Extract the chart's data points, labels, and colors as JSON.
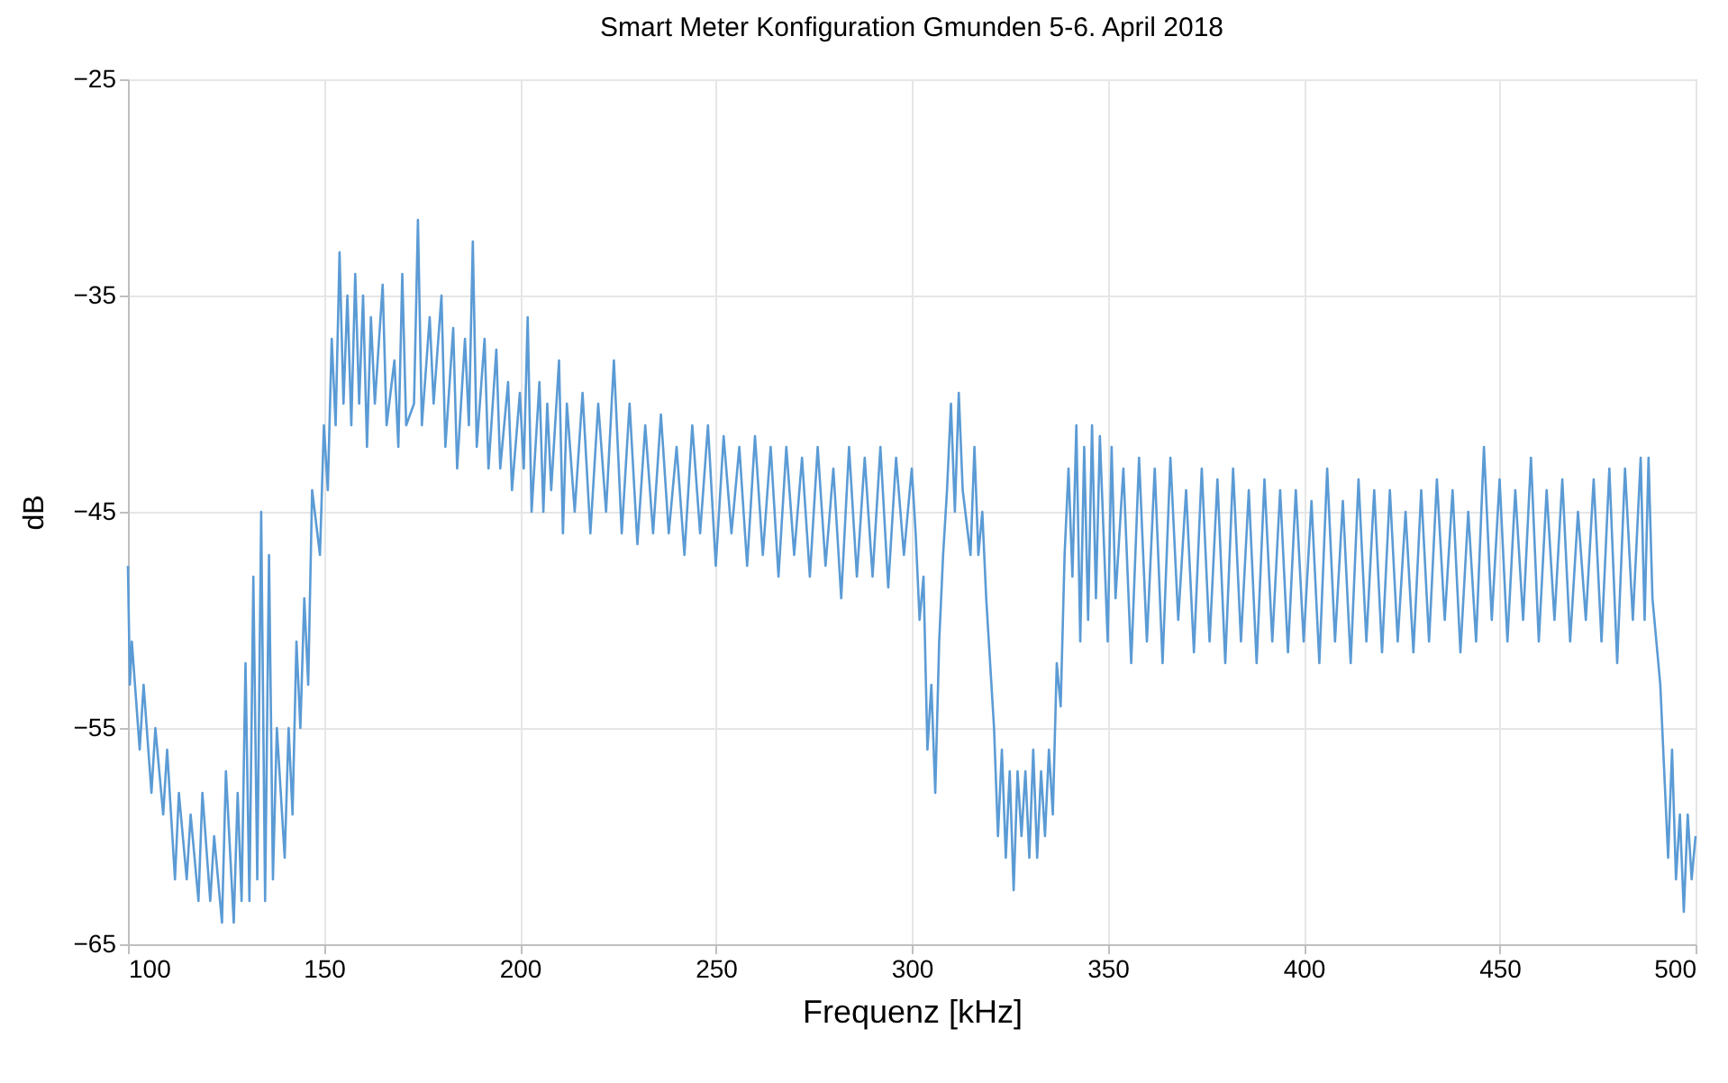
{
  "chart_data": {
    "type": "line",
    "title": "Smart Meter Konfiguration Gmunden 5-6. April 2018",
    "xlabel": "Frequenz [kHz]",
    "ylabel": "dB",
    "xlim": [
      100,
      500
    ],
    "xticks": [
      100,
      150,
      200,
      250,
      300,
      350,
      400,
      450,
      500
    ],
    "ylim": [
      -65,
      -25
    ],
    "yticks": [
      -65,
      -55,
      -45,
      -35,
      -25
    ],
    "grid": true,
    "marker": "none",
    "line_style": "solid",
    "series": [
      {
        "color": "#5b9bd5",
        "x": [
          100,
          100.5,
          101,
          103,
          104,
          106,
          107,
          109,
          110,
          112,
          113,
          115,
          116,
          118,
          119,
          121,
          122,
          124,
          125,
          127,
          128,
          129,
          130,
          131,
          132,
          133,
          134,
          135,
          136,
          137,
          138,
          140,
          141,
          142,
          143,
          144,
          145,
          146,
          147,
          149,
          150,
          151,
          152,
          153,
          154,
          155,
          156,
          157,
          158,
          159,
          160,
          161,
          162,
          163,
          165,
          166,
          168,
          169,
          170,
          171,
          173,
          174,
          175,
          177,
          178,
          180,
          181,
          183,
          184,
          186,
          187,
          188,
          189,
          191,
          192,
          194,
          195,
          197,
          198,
          200,
          201,
          202,
          203,
          205,
          206,
          207,
          208,
          210,
          211,
          212,
          214,
          216,
          218,
          220,
          222,
          224,
          226,
          228,
          230,
          232,
          234,
          236,
          238,
          240,
          242,
          244,
          246,
          248,
          250,
          252,
          254,
          256,
          258,
          260,
          262,
          264,
          266,
          268,
          270,
          272,
          274,
          276,
          278,
          280,
          282,
          284,
          286,
          288,
          290,
          292,
          294,
          296,
          298,
          300,
          301,
          302,
          303,
          304,
          305,
          306,
          307,
          308,
          309,
          310,
          311,
          312,
          313,
          315,
          316,
          317,
          318,
          319,
          320,
          321,
          322,
          323,
          324,
          325,
          326,
          327,
          328,
          329,
          330,
          331,
          332,
          333,
          334,
          335,
          336,
          337,
          338,
          339,
          340,
          341,
          342,
          343,
          344,
          345,
          346,
          347,
          348,
          350,
          351,
          352,
          354,
          356,
          358,
          360,
          362,
          364,
          366,
          368,
          370,
          372,
          374,
          376,
          378,
          380,
          382,
          384,
          386,
          388,
          390,
          392,
          394,
          396,
          398,
          400,
          402,
          404,
          406,
          408,
          410,
          412,
          414,
          416,
          418,
          420,
          422,
          424,
          426,
          428,
          430,
          432,
          434,
          436,
          438,
          440,
          442,
          444,
          446,
          448,
          450,
          452,
          454,
          456,
          458,
          460,
          462,
          464,
          466,
          468,
          470,
          472,
          474,
          476,
          478,
          480,
          482,
          484,
          486,
          487,
          488,
          489,
          490,
          491,
          492,
          493,
          494,
          495,
          496,
          497,
          498,
          499,
          500
        ],
        "values": [
          -47.5,
          -53,
          -51,
          -56,
          -53,
          -58,
          -55,
          -59,
          -56,
          -62,
          -58,
          -62,
          -59,
          -63,
          -58,
          -63,
          -60,
          -64,
          -57,
          -64,
          -58,
          -63,
          -52,
          -63,
          -48,
          -62,
          -45,
          -63,
          -47,
          -62,
          -55,
          -61,
          -55,
          -59,
          -51,
          -55,
          -49,
          -53,
          -44,
          -47,
          -41,
          -44,
          -37,
          -41,
          -33,
          -40,
          -35,
          -41,
          -34,
          -40,
          -35,
          -42,
          -36,
          -40,
          -34.5,
          -41,
          -38,
          -42,
          -34,
          -41,
          -40,
          -31.5,
          -41,
          -36,
          -40,
          -35,
          -42,
          -36.5,
          -43,
          -37,
          -41,
          -32.5,
          -42,
          -37,
          -43,
          -37.5,
          -43,
          -39,
          -44,
          -39.5,
          -43,
          -36,
          -45,
          -39,
          -45,
          -40,
          -44,
          -38,
          -46,
          -40,
          -45,
          -39.5,
          -46,
          -40,
          -45,
          -38,
          -46,
          -40,
          -46.5,
          -41,
          -46,
          -40.5,
          -46,
          -42,
          -47,
          -41,
          -46,
          -41,
          -47.5,
          -41.5,
          -46,
          -42,
          -47.5,
          -41.5,
          -47,
          -42,
          -48,
          -42,
          -47,
          -42.5,
          -48,
          -42,
          -47.5,
          -43,
          -49,
          -42,
          -48,
          -42.5,
          -48,
          -42,
          -48.5,
          -42.5,
          -47,
          -43,
          -46,
          -50,
          -48,
          -56,
          -53,
          -58,
          -51,
          -47,
          -44,
          -40,
          -45,
          -39.5,
          -44,
          -47,
          -42,
          -47,
          -45,
          -49,
          -52,
          -55,
          -60,
          -56,
          -61,
          -57,
          -62.5,
          -57,
          -60,
          -57,
          -61,
          -56,
          -61,
          -57,
          -60,
          -56,
          -59,
          -52,
          -54,
          -47,
          -43,
          -48,
          -41,
          -51,
          -42,
          -50,
          -41,
          -49,
          -41.5,
          -51,
          -42,
          -49,
          -43,
          -52,
          -42.5,
          -51,
          -43,
          -52,
          -42.5,
          -50,
          -44,
          -51.5,
          -43,
          -51,
          -43.5,
          -52,
          -43,
          -51,
          -44,
          -52,
          -43.5,
          -51,
          -44,
          -51.5,
          -44,
          -51,
          -44.5,
          -52,
          -43,
          -51,
          -44.5,
          -52,
          -43.5,
          -51,
          -44,
          -51.5,
          -44,
          -51,
          -45,
          -51.5,
          -44,
          -51,
          -43.5,
          -50,
          -44,
          -51.5,
          -45,
          -51,
          -42,
          -50,
          -43.5,
          -51,
          -44,
          -50,
          -42.5,
          -51,
          -44,
          -50,
          -43.5,
          -51,
          -45,
          -50,
          -43.5,
          -51,
          -43,
          -52,
          -43,
          -50,
          -42.5,
          -50,
          -42.5,
          -49,
          -51,
          -53,
          -57,
          -61,
          -56,
          -62,
          -59,
          -63.5,
          -59,
          -62,
          -60
        ]
      }
    ]
  }
}
